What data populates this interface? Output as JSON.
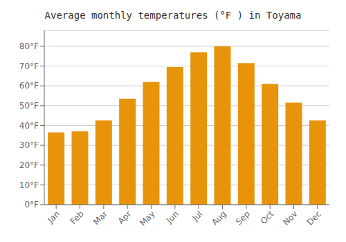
{
  "chart_data": {
    "type": "bar",
    "title": "Average monthly temperatures (°F ) in Toyama",
    "categories": [
      "Jan",
      "Feb",
      "Mar",
      "Apr",
      "May",
      "Jun",
      "Jul",
      "Aug",
      "Sep",
      "Oct",
      "Nov",
      "Dec"
    ],
    "values": [
      36.5,
      37.0,
      42.5,
      53.5,
      62.0,
      69.5,
      77.0,
      80.0,
      71.5,
      61.0,
      51.5,
      42.5
    ],
    "color": "#E8940A",
    "ylim": [
      0,
      88
    ],
    "yticks": [
      {
        "value": 0,
        "label": "0°F"
      },
      {
        "value": 10,
        "label": "10°F"
      },
      {
        "value": 20,
        "label": "20°F"
      },
      {
        "value": 30,
        "label": "30°F"
      },
      {
        "value": 40,
        "label": "40°F"
      },
      {
        "value": 50,
        "label": "50°F"
      },
      {
        "value": 60,
        "label": "60°F"
      },
      {
        "value": 70,
        "label": "70°F"
      },
      {
        "value": 80,
        "label": "80°F"
      }
    ],
    "grid": true
  }
}
